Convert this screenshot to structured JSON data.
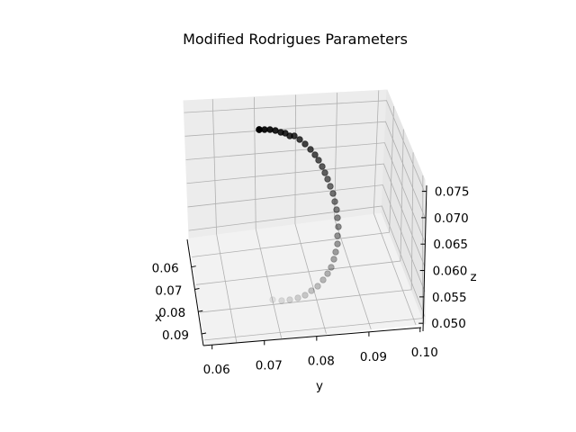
{
  "chart_data": {
    "type": "scatter",
    "title": "Modified Rodrigues Parameters",
    "xlabel": "x",
    "ylabel": "y",
    "zlabel": "z",
    "x_ticks": [
      "0.06",
      "0.07",
      "0.08",
      "0.09"
    ],
    "y_ticks": [
      "0.06",
      "0.07",
      "0.08",
      "0.09",
      "0.10"
    ],
    "z_ticks": [
      "0.050",
      "0.055",
      "0.060",
      "0.065",
      "0.070",
      "0.075"
    ],
    "grid": true,
    "marker_color": "#000000",
    "pane_color": "#f2f2f2",
    "points": [
      {
        "x": 0.055,
        "y": 0.055,
        "z": 0.051
      },
      {
        "x": 0.056,
        "y": 0.056,
        "z": 0.0512
      },
      {
        "x": 0.057,
        "y": 0.057,
        "z": 0.0515
      },
      {
        "x": 0.058,
        "y": 0.058,
        "z": 0.0519
      },
      {
        "x": 0.059,
        "y": 0.059,
        "z": 0.0524
      },
      {
        "x": 0.06,
        "y": 0.06,
        "z": 0.053
      },
      {
        "x": 0.061,
        "y": 0.061,
        "z": 0.0537
      },
      {
        "x": 0.062,
        "y": 0.062,
        "z": 0.0545
      },
      {
        "x": 0.063,
        "y": 0.063,
        "z": 0.0554
      },
      {
        "x": 0.064,
        "y": 0.064,
        "z": 0.0563
      },
      {
        "x": 0.065,
        "y": 0.065,
        "z": 0.0573
      },
      {
        "x": 0.066,
        "y": 0.066,
        "z": 0.0583
      },
      {
        "x": 0.067,
        "y": 0.067,
        "z": 0.0593
      },
      {
        "x": 0.068,
        "y": 0.068,
        "z": 0.0603
      },
      {
        "x": 0.069,
        "y": 0.069,
        "z": 0.0613
      },
      {
        "x": 0.07,
        "y": 0.07,
        "z": 0.0623
      },
      {
        "x": 0.071,
        "y": 0.071,
        "z": 0.0633
      },
      {
        "x": 0.072,
        "y": 0.072,
        "z": 0.0643
      },
      {
        "x": 0.073,
        "y": 0.073,
        "z": 0.0653
      },
      {
        "x": 0.074,
        "y": 0.074,
        "z": 0.0663
      },
      {
        "x": 0.075,
        "y": 0.075,
        "z": 0.0672
      },
      {
        "x": 0.076,
        "y": 0.076,
        "z": 0.0681
      },
      {
        "x": 0.077,
        "y": 0.077,
        "z": 0.069
      },
      {
        "x": 0.078,
        "y": 0.078,
        "z": 0.0698
      },
      {
        "x": 0.079,
        "y": 0.079,
        "z": 0.0706
      },
      {
        "x": 0.08,
        "y": 0.08,
        "z": 0.0713
      },
      {
        "x": 0.081,
        "y": 0.081,
        "z": 0.072
      },
      {
        "x": 0.082,
        "y": 0.082,
        "z": 0.0726
      },
      {
        "x": 0.083,
        "y": 0.083,
        "z": 0.0732
      },
      {
        "x": 0.084,
        "y": 0.084,
        "z": 0.0737
      },
      {
        "x": 0.085,
        "y": 0.085,
        "z": 0.0742
      },
      {
        "x": 0.086,
        "y": 0.086,
        "z": 0.0746
      },
      {
        "x": 0.087,
        "y": 0.087,
        "z": 0.075
      },
      {
        "x": 0.088,
        "y": 0.088,
        "z": 0.0753
      },
      {
        "x": 0.089,
        "y": 0.089,
        "z": 0.0756
      },
      {
        "x": 0.09,
        "y": 0.09,
        "z": 0.0758
      },
      {
        "x": 0.091,
        "y": 0.091,
        "z": 0.076
      },
      {
        "x": 0.092,
        "y": 0.092,
        "z": 0.0761
      }
    ]
  }
}
